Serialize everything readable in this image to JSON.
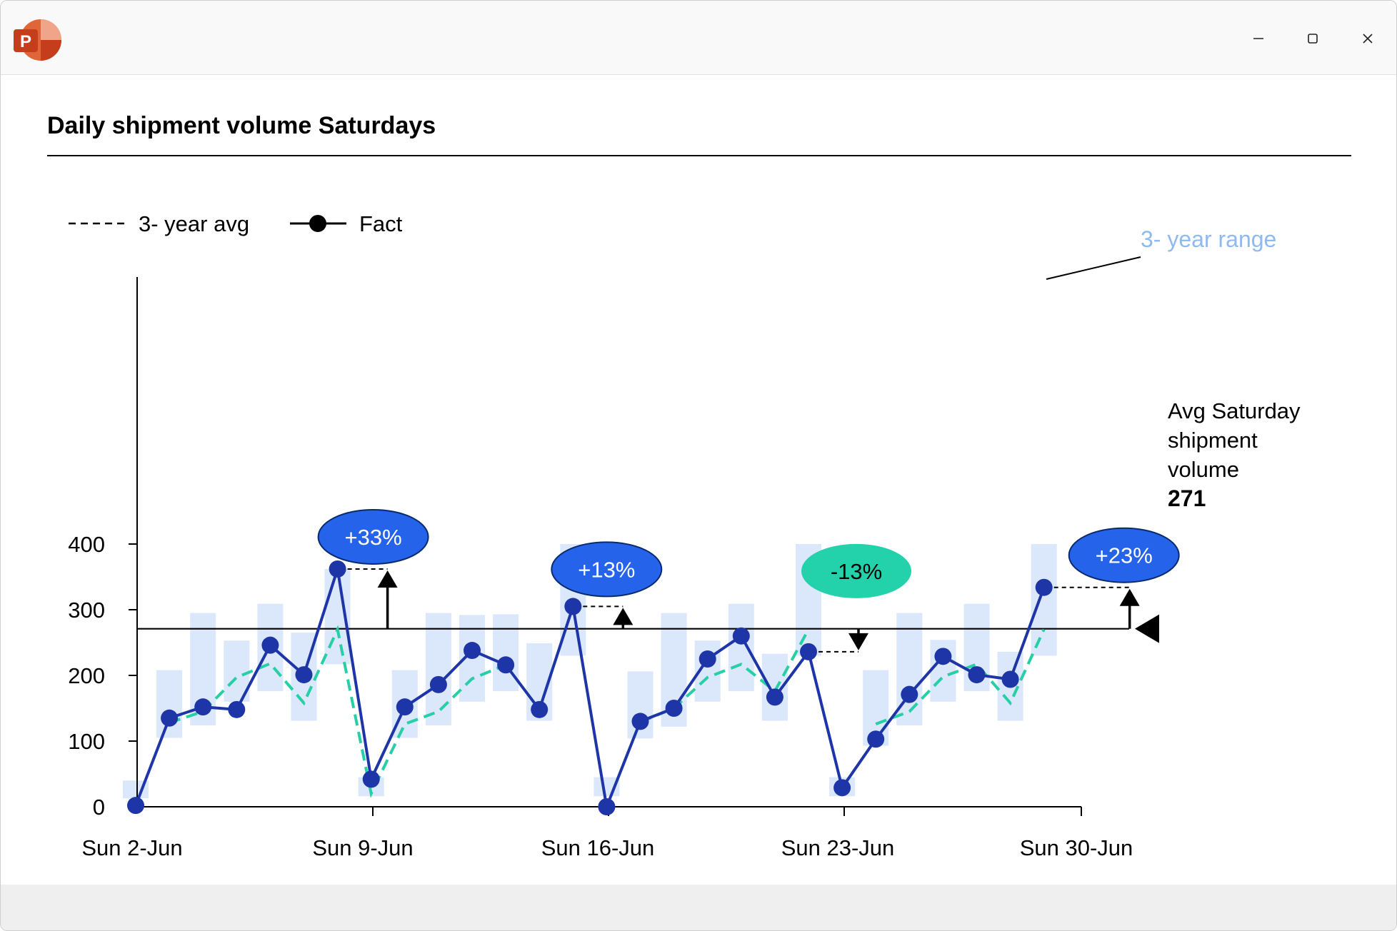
{
  "window": {
    "app_icon": "powerpoint-icon",
    "controls": {
      "minimize": "minimize-icon",
      "maximize": "maximize-icon",
      "close": "close-icon"
    }
  },
  "colors": {
    "range_bar": "#dbe7fb",
    "fact_line": "#1e35a8",
    "avg_line": "#27cfa6",
    "bubble_positive": "#2563eb",
    "bubble_negative": "#23d2aa",
    "range_label": "#8fb9f0",
    "axis": "#000000"
  },
  "chart_data": {
    "type": "line",
    "title": "Daily shipment volume Saturdays",
    "xlabel": "",
    "ylabel": "",
    "ylim": [
      0,
      400
    ],
    "yticks": [
      "0",
      "100",
      "200",
      "300",
      "400"
    ],
    "xtick_labels": [
      "Sun 2-Jun",
      "Sun 9-Jun",
      "Sun 16-Jun",
      "Sun 23-Jun",
      "Sun 30-Jun"
    ],
    "x": [
      "2-Jun",
      "3-Jun",
      "4-Jun",
      "5-Jun",
      "6-Jun",
      "7-Jun",
      "8-Jun",
      "9-Jun",
      "10-Jun",
      "11-Jun",
      "12-Jun",
      "13-Jun",
      "14-Jun",
      "15-Jun",
      "16-Jun",
      "17-Jun",
      "18-Jun",
      "19-Jun",
      "20-Jun",
      "21-Jun",
      "22-Jun",
      "23-Jun",
      "24-Jun",
      "25-Jun",
      "26-Jun",
      "27-Jun",
      "28-Jun",
      "29-Jun",
      "30-Jun"
    ],
    "legend": {
      "avg_label": "3- year avg",
      "fact_label": "Fact",
      "position": "top-left"
    },
    "series": [
      {
        "name": "Fact",
        "values": [
          2,
          135,
          152,
          148,
          246,
          201,
          362,
          42,
          152,
          186,
          238,
          216,
          148,
          305,
          0,
          130,
          150,
          225,
          260,
          167,
          236,
          29,
          103,
          171,
          229,
          201,
          194,
          334,
          null
        ]
      },
      {
        "name": "3- year avg",
        "values": [
          null,
          128,
          145,
          197,
          218,
          158,
          270,
          20,
          126,
          145,
          195,
          216,
          null,
          null,
          null,
          129,
          150,
          197,
          217,
          176,
          270,
          null,
          126,
          145,
          198,
          217,
          158,
          270,
          null
        ]
      }
    ],
    "range": {
      "label": "3- year range",
      "low": [
        13,
        105,
        124,
        160,
        176,
        131,
        217,
        16,
        105,
        124,
        160,
        176,
        131,
        230,
        16,
        104,
        122,
        160,
        176,
        131,
        230,
        16,
        93,
        124,
        160,
        176,
        131,
        230,
        null
      ],
      "high": [
        40,
        208,
        295,
        253,
        309,
        265,
        362,
        45,
        208,
        295,
        292,
        293,
        249,
        400,
        45,
        206,
        295,
        253,
        309,
        233,
        400,
        45,
        208,
        295,
        254,
        309,
        236,
        400,
        null
      ]
    },
    "reference_line": {
      "value": 271,
      "label_lines": [
        "Avg Saturday",
        "shipment",
        "volume"
      ],
      "value_label": "271"
    },
    "annotations": [
      {
        "label": "+33%",
        "x_index": 6,
        "value": 362,
        "direction": "up"
      },
      {
        "label": "+13%",
        "x_index": 13,
        "value": 305,
        "direction": "up"
      },
      {
        "label": "-13%",
        "x_index": 20,
        "value": 236,
        "direction": "down"
      },
      {
        "label": "+23%",
        "x_index": 27,
        "value": 334,
        "direction": "up"
      }
    ],
    "grid": false
  }
}
